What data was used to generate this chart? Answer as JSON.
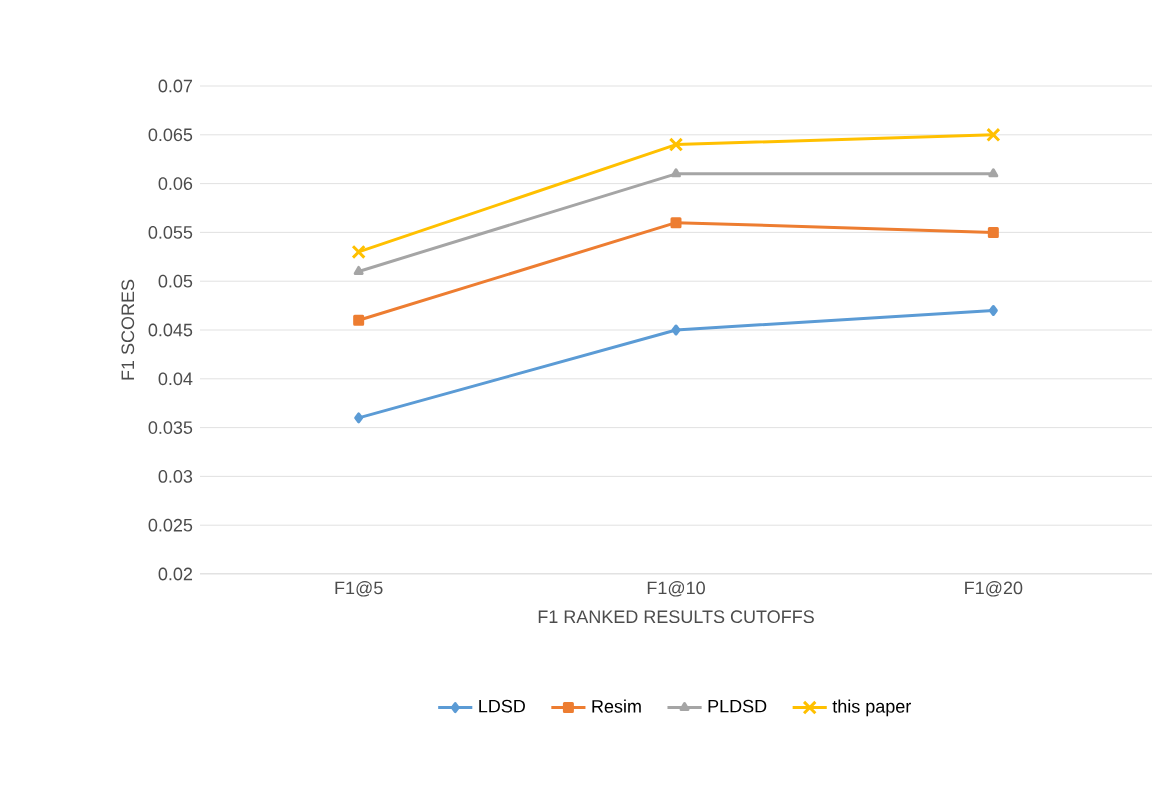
{
  "chart_data": {
    "type": "line",
    "xlabel": "F1 RANKED RESULTS CUTOFFS",
    "ylabel": "F1 SCORES",
    "categories": [
      "F1@5",
      "F1@10",
      "F1@20"
    ],
    "series": [
      {
        "name": "LDSD",
        "color": "#5b9bd5",
        "marker": "diamond",
        "values": [
          0.036,
          0.045,
          0.047
        ]
      },
      {
        "name": "Resim",
        "color": "#ed7d31",
        "marker": "square",
        "values": [
          0.046,
          0.056,
          0.055
        ]
      },
      {
        "name": "PLDSD",
        "color": "#a5a5a5",
        "marker": "triangle",
        "values": [
          0.051,
          0.061,
          0.061
        ]
      },
      {
        "name": "this paper",
        "color": "#ffc000",
        "marker": "cross",
        "values": [
          0.053,
          0.064,
          0.065
        ]
      }
    ],
    "ylim": [
      0.02,
      0.07
    ],
    "yticks": [
      0.02,
      0.025,
      0.03,
      0.035,
      0.04,
      0.045,
      0.05,
      0.055,
      0.06,
      0.065,
      0.07
    ],
    "grid": "y",
    "legend": "bottom",
    "line_style": "solid"
  }
}
